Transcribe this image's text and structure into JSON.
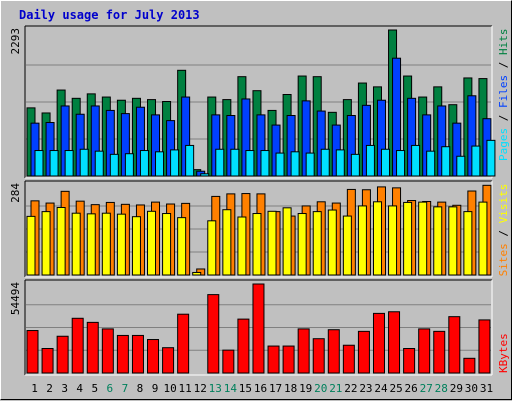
{
  "title": "Daily usage for July 2013",
  "colors": {
    "hits": "#008040",
    "files": "#0040ff",
    "pages": "#00e0ff",
    "visits": "#ffff00",
    "sites": "#ff8000",
    "kbytes": "#ff0000",
    "weekend_label": "#00805c",
    "weekday_label": "#000000",
    "panel_bg": "#c0c0c0"
  },
  "chart_data": [
    {
      "type": "bar",
      "panel": "hits-files-pages",
      "title": "",
      "ymax_label": "2293",
      "ylim": [
        0,
        2293
      ],
      "right_label": [
        "Pages",
        "/",
        "Files",
        "/",
        "Hits"
      ],
      "categories": [
        "1",
        "2",
        "3",
        "4",
        "5",
        "6",
        "7",
        "8",
        "9",
        "10",
        "11",
        "12",
        "13",
        "14",
        "15",
        "16",
        "17",
        "18",
        "19",
        "20",
        "21",
        "22",
        "23",
        "24",
        "25",
        "26",
        "27",
        "28",
        "29",
        "30",
        "31"
      ],
      "series": [
        {
          "name": "Hits",
          "values": [
            1070,
            990,
            1350,
            1220,
            1290,
            1240,
            1190,
            1220,
            1200,
            1170,
            1660,
            100,
            1240,
            1200,
            1560,
            1340,
            1030,
            1280,
            1570,
            1560,
            1000,
            1200,
            1460,
            1400,
            2293,
            1570,
            1240,
            1400,
            1120,
            1540,
            1530
          ]
        },
        {
          "name": "Files",
          "values": [
            830,
            840,
            1100,
            970,
            1100,
            1030,
            980,
            1080,
            960,
            870,
            1240,
            75,
            960,
            950,
            1210,
            960,
            800,
            950,
            1180,
            1020,
            800,
            950,
            1110,
            1190,
            1850,
            1220,
            960,
            1100,
            830,
            1260,
            900
          ]
        },
        {
          "name": "Pages",
          "values": [
            400,
            400,
            400,
            420,
            390,
            340,
            350,
            400,
            380,
            410,
            480,
            35,
            420,
            420,
            400,
            400,
            360,
            380,
            360,
            420,
            410,
            340,
            480,
            420,
            400,
            480,
            390,
            460,
            310,
            470,
            560
          ]
        }
      ]
    },
    {
      "type": "bar",
      "panel": "visits-sites",
      "title": "",
      "ymax_label": "284",
      "ylim": [
        0,
        284
      ],
      "right_label": [
        "Sites",
        "/",
        "Visits"
      ],
      "categories": [
        "1",
        "2",
        "3",
        "4",
        "5",
        "6",
        "7",
        "8",
        "9",
        "10",
        "11",
        "12",
        "13",
        "14",
        "15",
        "16",
        "17",
        "18",
        "19",
        "20",
        "21",
        "22",
        "23",
        "24",
        "25",
        "26",
        "27",
        "28",
        "29",
        "30",
        "31"
      ],
      "series": [
        {
          "name": "Sites",
          "values": [
            234,
            227,
            264,
            233,
            222,
            229,
            223,
            221,
            230,
            224,
            226,
            19,
            248,
            256,
            257,
            256,
            200,
            186,
            218,
            231,
            227,
            270,
            269,
            278,
            275,
            235,
            232,
            230,
            220,
            265,
            283
          ]
        },
        {
          "name": "Visits",
          "values": [
            185,
            200,
            213,
            195,
            193,
            195,
            192,
            184,
            201,
            194,
            181,
            8,
            171,
            206,
            183,
            194,
            201,
            212,
            194,
            200,
            205,
            186,
            218,
            231,
            218,
            229,
            230,
            215,
            215,
            200,
            230
          ]
        }
      ]
    },
    {
      "type": "bar",
      "panel": "kbytes",
      "title": "",
      "ymax_label": "54494",
      "ylim": [
        0,
        54494
      ],
      "right_label": [
        "KBytes"
      ],
      "categories": [
        "1",
        "2",
        "3",
        "4",
        "5",
        "6",
        "7",
        "8",
        "9",
        "10",
        "11",
        "12",
        "13",
        "14",
        "15",
        "16",
        "17",
        "18",
        "19",
        "20",
        "21",
        "22",
        "23",
        "24",
        "25",
        "26",
        "27",
        "28",
        "29",
        "30",
        "31"
      ],
      "series": [
        {
          "name": "KBytes",
          "values": [
            26000,
            15000,
            22500,
            33500,
            31000,
            27000,
            23000,
            23000,
            20500,
            15500,
            36000,
            0,
            48000,
            14000,
            33000,
            54494,
            16500,
            16500,
            27000,
            21000,
            26500,
            17000,
            25500,
            36500,
            37500,
            15000,
            27000,
            25500,
            34500,
            9000,
            32500
          ]
        }
      ]
    }
  ],
  "day_labels": {
    "values": [
      "1",
      "2",
      "3",
      "4",
      "5",
      "6",
      "7",
      "8",
      "9",
      "10",
      "11",
      "12",
      "13",
      "14",
      "15",
      "16",
      "17",
      "18",
      "19",
      "20",
      "21",
      "22",
      "23",
      "24",
      "25",
      "26",
      "27",
      "28",
      "29",
      "30",
      "31"
    ],
    "weekend": [
      6,
      7,
      13,
      14,
      20,
      21,
      27,
      28
    ]
  }
}
